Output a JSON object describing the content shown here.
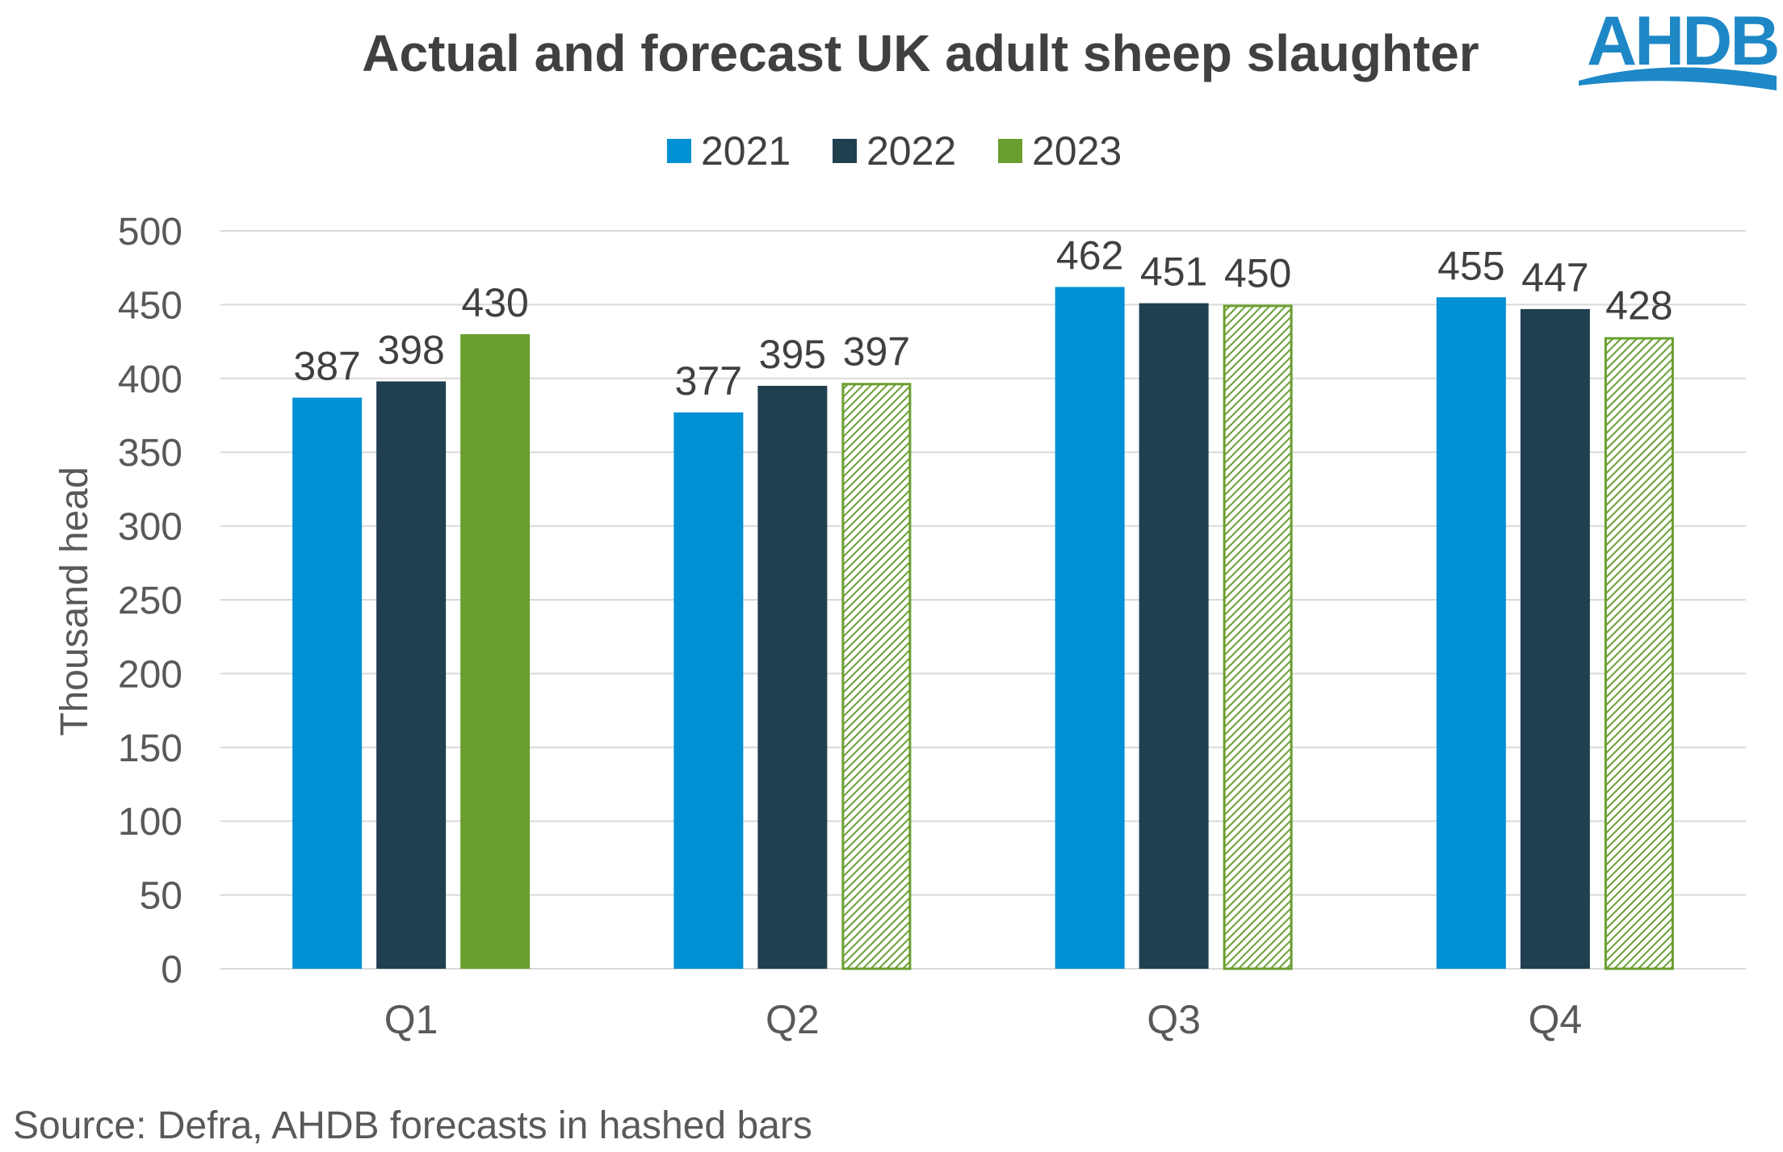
{
  "logo": {
    "text": "AHDB",
    "color": "#1e88c7"
  },
  "source_note": "Source: Defra, AHDB forecasts in hashed bars",
  "chart_data": {
    "type": "bar",
    "title": "Actual and forecast UK adult sheep slaughter",
    "xlabel": "",
    "ylabel": "Thousand head",
    "ylim": [
      0,
      500
    ],
    "yticks": [
      0,
      50,
      100,
      150,
      200,
      250,
      300,
      350,
      400,
      450,
      500
    ],
    "grid": true,
    "legend_position": "top-center",
    "categories": [
      "Q1",
      "Q2",
      "Q3",
      "Q4"
    ],
    "series": [
      {
        "name": "2021",
        "color": "#0090d4",
        "values": [
          387,
          377,
          462,
          455
        ],
        "forecast": [
          false,
          false,
          false,
          false
        ]
      },
      {
        "name": "2022",
        "color": "#203f4f",
        "values": [
          398,
          395,
          451,
          447
        ],
        "forecast": [
          false,
          false,
          false,
          false
        ]
      },
      {
        "name": "2023",
        "color": "#6a9f30",
        "values": [
          430,
          397,
          450,
          428
        ],
        "forecast": [
          false,
          true,
          true,
          true
        ]
      }
    ]
  }
}
